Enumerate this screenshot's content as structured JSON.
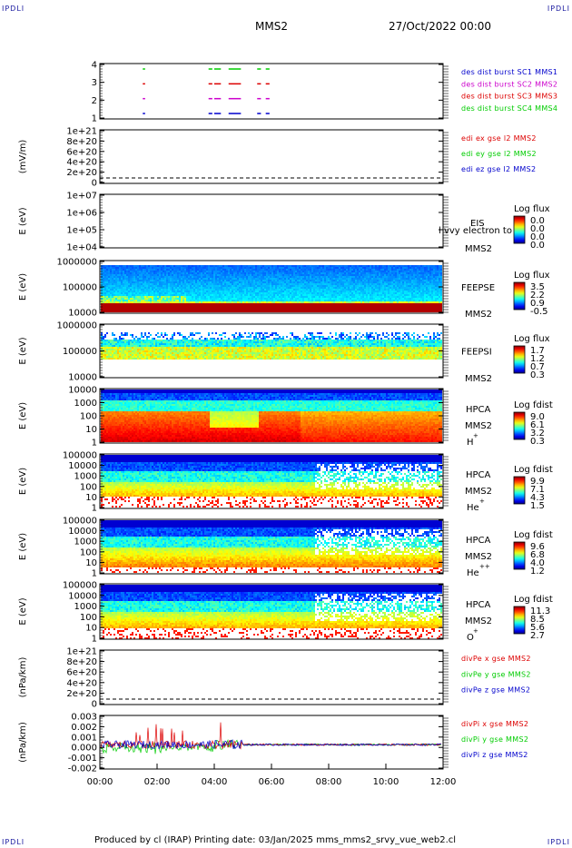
{
  "corners": {
    "tl": "IPDLI",
    "tr": "IPDLI",
    "bl": "IPDLI",
    "br": "IPDLI"
  },
  "header": {
    "spacecraft": "MMS2",
    "date": "27/Oct/2022 00:00"
  },
  "footer": {
    "text": "Produced by cl (IRAP)   Printing date: 03/Jan/2025   mms_mms2_srvy_vue_web2.cl"
  },
  "time_axis": {
    "ticks": [
      "00:00",
      "02:00",
      "04:00",
      "06:00",
      "08:00",
      "10:00",
      "12:00"
    ],
    "range_hours": [
      0,
      12
    ]
  },
  "colors": {
    "red": "#dd0000",
    "green": "#00cc00",
    "blue": "#0000cc",
    "magenta": "#cc00cc"
  },
  "chart_data": [
    {
      "id": "burst",
      "type": "scatter",
      "yticks": [
        "4",
        "3",
        "2",
        "1"
      ],
      "legend": [
        {
          "text": "des dist burst SC1 MMS1",
          "color": "#0000cc"
        },
        {
          "text": "des dist burst SC2 MMS2",
          "color": "#cc00cc"
        },
        {
          "text": "des dist burst SC3 MMS3",
          "color": "#dd0000"
        },
        {
          "text": "des dist burst SC4 MMS4",
          "color": "#00cc00"
        }
      ],
      "series": [
        {
          "level": 4,
          "color": "#00cc00",
          "segments": [
            [
              1.5,
              1.55
            ],
            [
              3.8,
              3.9
            ],
            [
              4.0,
              4.2
            ],
            [
              4.5,
              4.9
            ],
            [
              5.5,
              5.6
            ],
            [
              5.8,
              5.9
            ]
          ]
        },
        {
          "level": 3,
          "color": "#dd0000",
          "segments": [
            [
              1.5,
              1.55
            ],
            [
              3.8,
              3.9
            ],
            [
              4.0,
              4.2
            ],
            [
              4.5,
              4.9
            ],
            [
              5.5,
              5.6
            ],
            [
              5.8,
              5.9
            ]
          ]
        },
        {
          "level": 2,
          "color": "#cc00cc",
          "segments": [
            [
              1.5,
              1.55
            ],
            [
              3.8,
              3.9
            ],
            [
              4.0,
              4.2
            ],
            [
              4.5,
              4.9
            ],
            [
              5.5,
              5.6
            ],
            [
              5.8,
              5.9
            ]
          ]
        },
        {
          "level": 1,
          "color": "#0000cc",
          "segments": [
            [
              1.5,
              1.55
            ],
            [
              3.8,
              3.9
            ],
            [
              4.0,
              4.2
            ],
            [
              4.5,
              4.9
            ],
            [
              5.5,
              5.6
            ],
            [
              5.8,
              5.9
            ]
          ]
        }
      ]
    },
    {
      "id": "edi",
      "type": "line",
      "ylabel": "(mV/m)",
      "yticks": [
        "1e+21",
        "8e+20",
        "6e+20",
        "4e+20",
        "2e+20",
        "0"
      ],
      "legend": [
        {
          "text": "edi ex gse l2 MMS2",
          "color": "#dd0000"
        },
        {
          "text": "edi ey gse l2 MMS2",
          "color": "#00cc00"
        },
        {
          "text": "edi ez gse l2 MMS2",
          "color": "#0000cc"
        }
      ]
    },
    {
      "id": "eis",
      "type": "heatmap",
      "ylabel": "E (eV)",
      "yticks": [
        "1e+07",
        "1e+06",
        "1e+05",
        "1e+04"
      ],
      "right_label": [
        "EIS",
        "MMS2"
      ],
      "overlay_text": "l vvy electron to",
      "colorbar": {
        "title": "Log flux",
        "ticks": [
          "0.0",
          "0.0",
          "0.0",
          "0.0"
        ]
      }
    },
    {
      "id": "feepse",
      "type": "heatmap",
      "ylabel": "E (eV)",
      "yticks": [
        "1000000",
        "100000",
        "10000"
      ],
      "right_label": [
        "FEEPSE",
        "MMS2"
      ],
      "colorbar": {
        "title": "Log flux",
        "ticks": [
          "3.5",
          "2.2",
          "0.9",
          "-0.5"
        ]
      }
    },
    {
      "id": "feepsi",
      "type": "heatmap",
      "ylabel": "E (eV)",
      "yticks": [
        "1000000",
        "100000",
        "10000"
      ],
      "right_label": [
        "FEEPSI",
        "MMS2"
      ],
      "colorbar": {
        "title": "Log flux",
        "ticks": [
          "1.7",
          "1.2",
          "0.7",
          "0.3"
        ]
      }
    },
    {
      "id": "hpca_h",
      "type": "heatmap",
      "ylabel": "E (eV)",
      "yticks": [
        "10000",
        "1000",
        "100",
        "10",
        "1"
      ],
      "right_label": [
        "HPCA",
        "MMS2",
        "H",
        "+"
      ],
      "colorbar": {
        "title": "Log fdist",
        "ticks": [
          "9.0",
          "6.1",
          "3.2",
          "0.3"
        ]
      }
    },
    {
      "id": "hpca_he",
      "type": "heatmap",
      "ylabel": "E (eV)",
      "yticks": [
        "100000",
        "10000",
        "1000",
        "100",
        "10",
        "1"
      ],
      "right_label": [
        "HPCA",
        "MMS2",
        "He",
        "+"
      ],
      "colorbar": {
        "title": "Log fdist",
        "ticks": [
          "9.9",
          "7.1",
          "4.3",
          "1.5"
        ]
      }
    },
    {
      "id": "hpca_hepp",
      "type": "heatmap",
      "ylabel": "E (eV)",
      "yticks": [
        "100000",
        "10000",
        "1000",
        "100",
        "10",
        "1"
      ],
      "right_label": [
        "HPCA",
        "MMS2",
        "He",
        "++"
      ],
      "colorbar": {
        "title": "Log fdist",
        "ticks": [
          "9.6",
          "6.8",
          "4.0",
          "1.2"
        ]
      }
    },
    {
      "id": "hpca_o",
      "type": "heatmap",
      "ylabel": "E (eV)",
      "yticks": [
        "100000",
        "10000",
        "1000",
        "100",
        "10",
        "1"
      ],
      "right_label": [
        "HPCA",
        "MMS2",
        "O",
        "+"
      ],
      "colorbar": {
        "title": "Log fdist",
        "ticks": [
          "11.3",
          "8.5",
          "5.6",
          "2.7"
        ]
      }
    },
    {
      "id": "divpe",
      "type": "line",
      "ylabel": "(nPa/km)",
      "yticks": [
        "1e+21",
        "8e+20",
        "6e+20",
        "4e+20",
        "2e+20",
        "0"
      ],
      "legend": [
        {
          "text": "divPe x gse MMS2",
          "color": "#dd0000"
        },
        {
          "text": "divPe y gse MMS2",
          "color": "#00cc00"
        },
        {
          "text": "divPe z gse MMS2",
          "color": "#0000cc"
        }
      ]
    },
    {
      "id": "divpi",
      "type": "line",
      "ylabel": "(nPa/km)",
      "yticks": [
        "0.003",
        "0.002",
        "0.001",
        "0.000",
        "-0.001",
        "-0.002"
      ],
      "ylim": [
        -0.0025,
        0.003
      ],
      "legend": [
        {
          "text": "divPi x gse MMS2",
          "color": "#dd0000"
        },
        {
          "text": "divPi y gse MMS2",
          "color": "#00cc00"
        },
        {
          "text": "divPi z gse MMS2",
          "color": "#0000cc"
        }
      ]
    }
  ]
}
